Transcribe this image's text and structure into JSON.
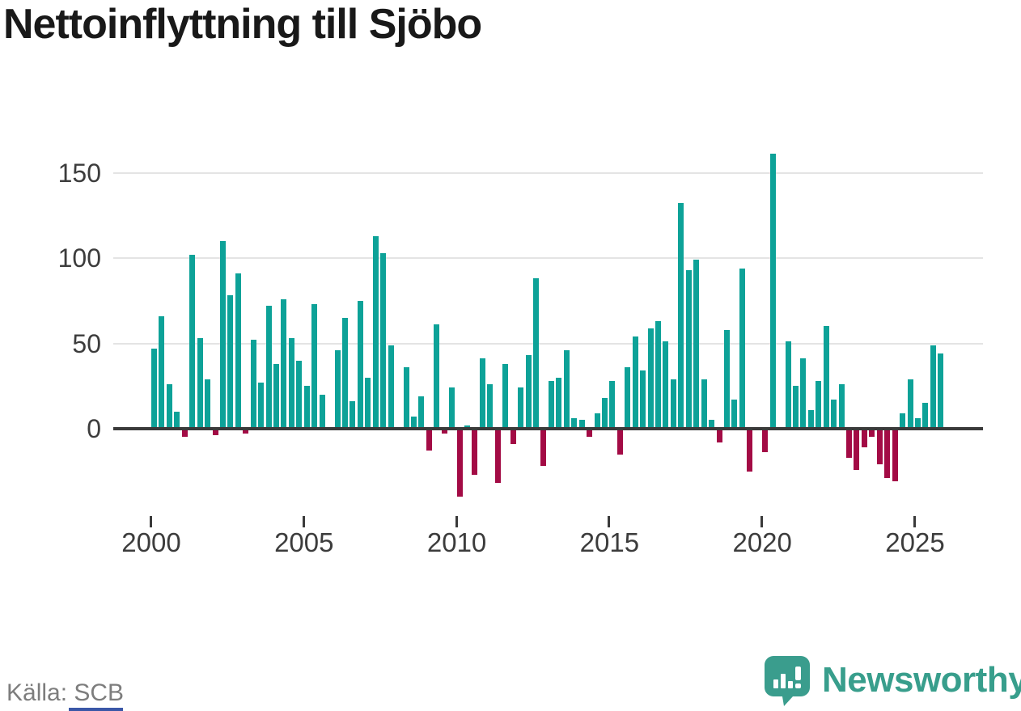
{
  "title": "Nettoinflyttning till Sjöbo",
  "source": "Källa: SCB",
  "branding": {
    "logo_text": "Newsworthy",
    "logo_icon": "newsworthy-speech-bubble-bar-chart-icon"
  },
  "colors": {
    "positive_bar": "#0da298",
    "negative_bar": "#a30b45",
    "gridline": "#e4e4e4",
    "axis_line": "#3a3a3a",
    "title_text": "#191919",
    "tick_text": "#3c3c3c",
    "source_text": "#7d7d7d",
    "brand_teal": "#389e8c"
  },
  "x_axis": {
    "tick_labels": [
      "2000",
      "2005",
      "2010",
      "2015",
      "2020",
      "2025"
    ]
  },
  "y_axis": {
    "tick_labels": [
      "150",
      "100",
      "50",
      "0"
    ],
    "tick_values": [
      150,
      100,
      50,
      0
    ]
  },
  "chart_data": {
    "type": "bar",
    "title": "Nettoinflyttning till Sjöbo",
    "period": "quarterly",
    "start_period": "2000Q1",
    "end_period": "2025Q4",
    "xlabel": "",
    "ylabel": "",
    "ylim": [
      -45,
      170
    ],
    "grid": true,
    "values": [
      47,
      66,
      26,
      10,
      -4,
      102,
      53,
      29,
      -3,
      110,
      78,
      91,
      -2,
      52,
      27,
      72,
      38,
      76,
      53,
      40,
      25,
      73,
      20,
      0,
      46,
      65,
      16,
      75,
      30,
      113,
      103,
      49,
      0,
      36,
      7,
      19,
      -12,
      61,
      -2,
      24,
      -39,
      2,
      -26,
      41,
      26,
      -31,
      38,
      -8,
      24,
      43,
      88,
      -21,
      28,
      30,
      46,
      6,
      5,
      -4,
      9,
      18,
      28,
      -14,
      36,
      54,
      34,
      59,
      63,
      51,
      29,
      132,
      93,
      99,
      29,
      5,
      -7,
      58,
      17,
      94,
      -24,
      0,
      -13,
      161,
      0,
      51,
      25,
      41,
      11,
      28,
      60,
      17,
      26,
      -16,
      -23,
      -10,
      -4,
      -20,
      -28,
      -30,
      9,
      29,
      6,
      15,
      49,
      44
    ]
  }
}
